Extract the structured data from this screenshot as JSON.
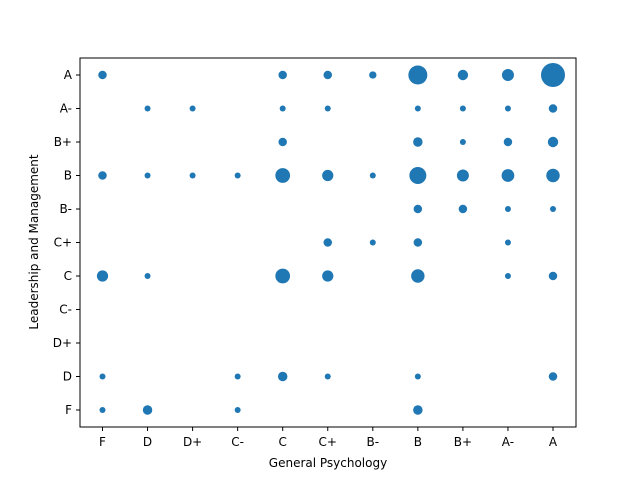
{
  "chart_data": {
    "type": "scatter",
    "xlabel": "General Psychology",
    "ylabel": "Leadership and Management",
    "x_categories": [
      "F",
      "D",
      "D+",
      "C-",
      "C",
      "C+",
      "B-",
      "B",
      "B+",
      "A-",
      "A"
    ],
    "y_categories": [
      "F",
      "D",
      "D+",
      "C-",
      "C",
      "C+",
      "B-",
      "B",
      "B+",
      "A-",
      "A"
    ],
    "marker_color": "#1f77b4",
    "size_meaning": "relative count",
    "points": [
      {
        "x": "F",
        "y": "A",
        "size": 2
      },
      {
        "x": "C",
        "y": "A",
        "size": 2
      },
      {
        "x": "C+",
        "y": "A",
        "size": 2
      },
      {
        "x": "B-",
        "y": "A",
        "size": 1.5
      },
      {
        "x": "B",
        "y": "A",
        "size": 10
      },
      {
        "x": "B+",
        "y": "A",
        "size": 3
      },
      {
        "x": "A-",
        "y": "A",
        "size": 4
      },
      {
        "x": "A",
        "y": "A",
        "size": 16
      },
      {
        "x": "D",
        "y": "A-",
        "size": 1
      },
      {
        "x": "D+",
        "y": "A-",
        "size": 1
      },
      {
        "x": "C",
        "y": "A-",
        "size": 1
      },
      {
        "x": "C+",
        "y": "A-",
        "size": 1
      },
      {
        "x": "B",
        "y": "A-",
        "size": 1
      },
      {
        "x": "B+",
        "y": "A-",
        "size": 1
      },
      {
        "x": "A-",
        "y": "A-",
        "size": 1
      },
      {
        "x": "A",
        "y": "A-",
        "size": 2
      },
      {
        "x": "C",
        "y": "B+",
        "size": 2
      },
      {
        "x": "B",
        "y": "B+",
        "size": 2.5
      },
      {
        "x": "B+",
        "y": "B+",
        "size": 1
      },
      {
        "x": "A-",
        "y": "B+",
        "size": 2
      },
      {
        "x": "A",
        "y": "B+",
        "size": 3
      },
      {
        "x": "F",
        "y": "B",
        "size": 2
      },
      {
        "x": "D",
        "y": "B",
        "size": 1
      },
      {
        "x": "D+",
        "y": "B",
        "size": 1
      },
      {
        "x": "C-",
        "y": "B",
        "size": 1
      },
      {
        "x": "C",
        "y": "B",
        "size": 6
      },
      {
        "x": "C+",
        "y": "B",
        "size": 3.5
      },
      {
        "x": "B-",
        "y": "B",
        "size": 1
      },
      {
        "x": "B",
        "y": "B",
        "size": 8
      },
      {
        "x": "B+",
        "y": "B",
        "size": 4
      },
      {
        "x": "A-",
        "y": "B",
        "size": 4.5
      },
      {
        "x": "A",
        "y": "B",
        "size": 5
      },
      {
        "x": "B",
        "y": "B-",
        "size": 2
      },
      {
        "x": "B+",
        "y": "B-",
        "size": 2
      },
      {
        "x": "A-",
        "y": "B-",
        "size": 1
      },
      {
        "x": "A",
        "y": "B-",
        "size": 1
      },
      {
        "x": "C+",
        "y": "C+",
        "size": 2
      },
      {
        "x": "B-",
        "y": "C+",
        "size": 1
      },
      {
        "x": "B",
        "y": "C+",
        "size": 2
      },
      {
        "x": "A-",
        "y": "C+",
        "size": 1
      },
      {
        "x": "F",
        "y": "C",
        "size": 3.5
      },
      {
        "x": "D",
        "y": "C",
        "size": 1
      },
      {
        "x": "C",
        "y": "C",
        "size": 6
      },
      {
        "x": "C+",
        "y": "C",
        "size": 3.5
      },
      {
        "x": "B",
        "y": "C",
        "size": 5
      },
      {
        "x": "A-",
        "y": "C",
        "size": 1
      },
      {
        "x": "A",
        "y": "C",
        "size": 2
      },
      {
        "x": "F",
        "y": "D",
        "size": 1
      },
      {
        "x": "C-",
        "y": "D",
        "size": 1
      },
      {
        "x": "C",
        "y": "D",
        "size": 2.5
      },
      {
        "x": "C+",
        "y": "D",
        "size": 1
      },
      {
        "x": "B",
        "y": "D",
        "size": 1
      },
      {
        "x": "A",
        "y": "D",
        "size": 2
      },
      {
        "x": "F",
        "y": "F",
        "size": 1
      },
      {
        "x": "D",
        "y": "F",
        "size": 2.5
      },
      {
        "x": "C-",
        "y": "F",
        "size": 1
      },
      {
        "x": "B",
        "y": "F",
        "size": 2.5
      }
    ]
  }
}
